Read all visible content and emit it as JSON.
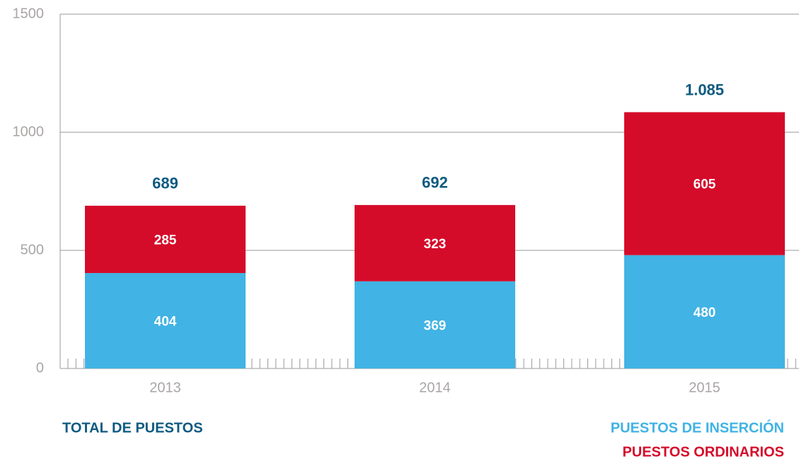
{
  "chart_data": {
    "type": "stacked_bar",
    "categories": [
      "2013",
      "2014",
      "2015"
    ],
    "series": [
      {
        "name": "PUESTOS DE INSERCIÓN",
        "color": "#41b3e4",
        "values": [
          404,
          369,
          480
        ]
      },
      {
        "name": "PUESTOS ORDINARIOS",
        "color": "#d50b2a",
        "values": [
          285,
          323,
          605
        ]
      }
    ],
    "totals": {
      "name": "TOTAL DE PUESTOS",
      "color": "#0d5a80",
      "values": [
        689,
        692,
        1085
      ],
      "value_labels": [
        "689",
        "692",
        "1.085"
      ]
    },
    "ylim": [
      0,
      1500
    ],
    "yticks": [
      0,
      500,
      1000,
      1500
    ],
    "grid": true
  }
}
